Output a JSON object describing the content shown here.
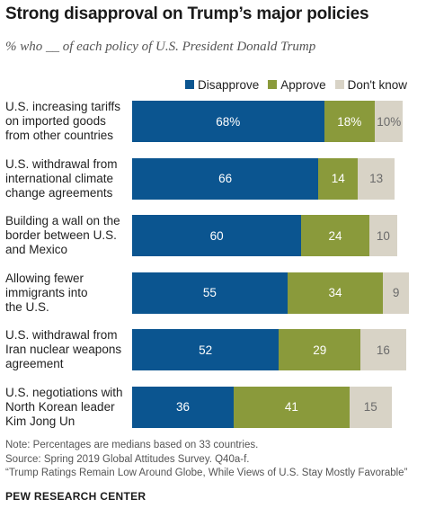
{
  "title": "Strong disapproval on Trump’s major policies",
  "subtitle": "% who __ of each policy of U.S. President Donald Trump",
  "legend": [
    {
      "label": "Disapprove",
      "color": "#0b5590"
    },
    {
      "label": "Approve",
      "color": "#8a9a3b"
    },
    {
      "label": "Don't know",
      "color": "#d8d3c6"
    }
  ],
  "chart_data": {
    "type": "bar",
    "orientation": "horizontal",
    "stacked": true,
    "categories": [
      "U.S. increasing tariffs on imported goods from other countries",
      "U.S. withdrawal from international climate change agreements",
      "Building a wall on the border between U.S. and Mexico",
      "Allowing fewer immigrants into the U.S.",
      "U.S. withdrawal from Iran nuclear weapons agreement",
      "U.S. negotiations with North Korean leader Kim Jong Un"
    ],
    "category_lines": [
      [
        "U.S. increasing tariffs",
        "on imported goods",
        "from other countries"
      ],
      [
        "U.S. withdrawal from",
        "international climate",
        "change agreements"
      ],
      [
        "Building a wall on the",
        "border between U.S.",
        "and Mexico"
      ],
      [
        "Allowing fewer",
        "immigrants into",
        "the U.S."
      ],
      [
        "U.S. withdrawal from",
        "Iran nuclear weapons",
        "agreement"
      ],
      [
        "U.S. negotiations with",
        "North Korean leader",
        "Kim Jong Un"
      ]
    ],
    "series": [
      {
        "name": "Disapprove",
        "values": [
          68,
          66,
          60,
          55,
          52,
          36
        ],
        "labels": [
          "68%",
          "66",
          "60",
          "55",
          "52",
          "36"
        ]
      },
      {
        "name": "Approve",
        "values": [
          18,
          14,
          24,
          34,
          29,
          41
        ],
        "labels": [
          "18%",
          "14",
          "24",
          "34",
          "29",
          "41"
        ]
      },
      {
        "name": "Don't know",
        "values": [
          10,
          13,
          10,
          9,
          16,
          15
        ],
        "labels": [
          "10%",
          "13",
          "10",
          "9",
          "16",
          "15"
        ]
      }
    ],
    "xlim": [
      0,
      100
    ],
    "legend_position": "top-right",
    "grid": false
  },
  "notes": [
    "Note: Percentages are medians based on 33 countries.",
    "Source: Spring 2019 Global Attitudes Survey. Q40a-f.",
    "“Trump Ratings Remain Low Around Globe, While Views of U.S. Stay Mostly Favorable”"
  ],
  "source_org": "PEW RESEARCH CENTER"
}
